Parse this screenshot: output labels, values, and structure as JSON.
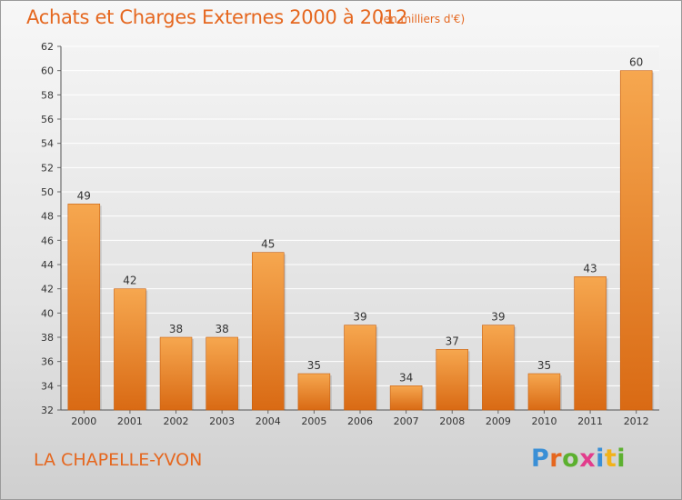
{
  "header": {
    "title": "Achats et Charges Externes 2000 à 2012",
    "unit": "(en milliers d'€)"
  },
  "footer": {
    "commune": "LA CHAPELLE-YVON",
    "logo_text": "Proxiti",
    "logo_colors": [
      "#3a8fd6",
      "#e5671f",
      "#5cb02f",
      "#e23c8c",
      "#3a8fd6",
      "#f2b21a",
      "#5cb02f"
    ]
  },
  "colors": {
    "text_accent": "#e5671f",
    "bar_top": "#f6a74f",
    "bar_bottom": "#d96a14",
    "grid": "#ffffff"
  },
  "chart_data": {
    "type": "bar",
    "title": "Achats et Charges Externes 2000 à 2012",
    "subtitle": "(en milliers d'€)",
    "categories": [
      "2000",
      "2001",
      "2002",
      "2003",
      "2004",
      "2005",
      "2006",
      "2007",
      "2008",
      "2009",
      "2010",
      "2011",
      "2012"
    ],
    "values": [
      49,
      42,
      38,
      38,
      45,
      35,
      39,
      34,
      37,
      39,
      35,
      43,
      60
    ],
    "ylim": [
      32,
      62
    ],
    "ytick_step": 2,
    "grid": true,
    "xlabel": "",
    "ylabel": ""
  }
}
